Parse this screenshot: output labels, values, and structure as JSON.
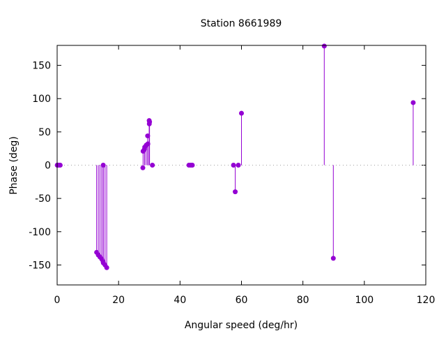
{
  "chart_data": {
    "type": "scatter",
    "style": "impulses-with-points",
    "title": "Station 8661989",
    "xlabel": "Angular speed (deg/hr)",
    "ylabel": "Phase (deg)",
    "xlim": [
      0,
      120
    ],
    "ylim": [
      -180,
      180
    ],
    "xticks": [
      0,
      20,
      40,
      60,
      80,
      100,
      120
    ],
    "yticks": [
      -150,
      -100,
      -50,
      0,
      50,
      100,
      150
    ],
    "grid": false,
    "zero_line": "dotted",
    "color": "#9400d3",
    "points": [
      [
        0.04,
        0
      ],
      [
        0.08,
        0
      ],
      [
        0.5,
        0
      ],
      [
        1.0,
        0
      ],
      [
        12.85,
        -131
      ],
      [
        13.4,
        -135
      ],
      [
        13.94,
        -138
      ],
      [
        14.49,
        -141
      ],
      [
        14.96,
        -145
      ],
      [
        15.0,
        0
      ],
      [
        15.04,
        -147
      ],
      [
        15.59,
        -150
      ],
      [
        16.14,
        -154
      ],
      [
        27.9,
        -4
      ],
      [
        27.97,
        21
      ],
      [
        28.44,
        24
      ],
      [
        28.51,
        27
      ],
      [
        28.99,
        30
      ],
      [
        29.46,
        44
      ],
      [
        29.53,
        32
      ],
      [
        29.96,
        67
      ],
      [
        30.0,
        62
      ],
      [
        30.08,
        65
      ],
      [
        31.0,
        0
      ],
      [
        42.9,
        0
      ],
      [
        43.5,
        0
      ],
      [
        44.0,
        0
      ],
      [
        57.4,
        0
      ],
      [
        57.97,
        -40
      ],
      [
        58.98,
        0
      ],
      [
        60.0,
        78
      ],
      [
        86.95,
        179
      ],
      [
        89.9,
        -140
      ],
      [
        115.9,
        94
      ]
    ]
  }
}
